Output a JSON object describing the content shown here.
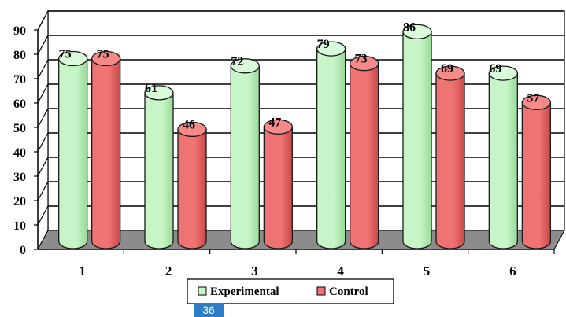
{
  "chart_data": {
    "type": "bar",
    "categories": [
      "1",
      "2",
      "3",
      "4",
      "5",
      "6"
    ],
    "series": [
      {
        "name": "Experimental",
        "values": [
          75,
          61,
          72,
          79,
          86,
          69
        ]
      },
      {
        "name": "Control",
        "values": [
          75,
          46,
          47,
          73,
          69,
          57
        ]
      }
    ],
    "ylim": [
      0,
      90
    ],
    "y_ticks": [
      "0",
      "10",
      "20",
      "30",
      "40",
      "50",
      "60",
      "70",
      "80",
      "90"
    ],
    "grid": true,
    "legend_position": "bottom-center",
    "style": "3d-cylinder",
    "colors": {
      "Experimental": "#c8f5c8",
      "Control": "#f07373",
      "floor": "#8c8c8c",
      "grid": "#000000"
    }
  },
  "page_badge": "36"
}
